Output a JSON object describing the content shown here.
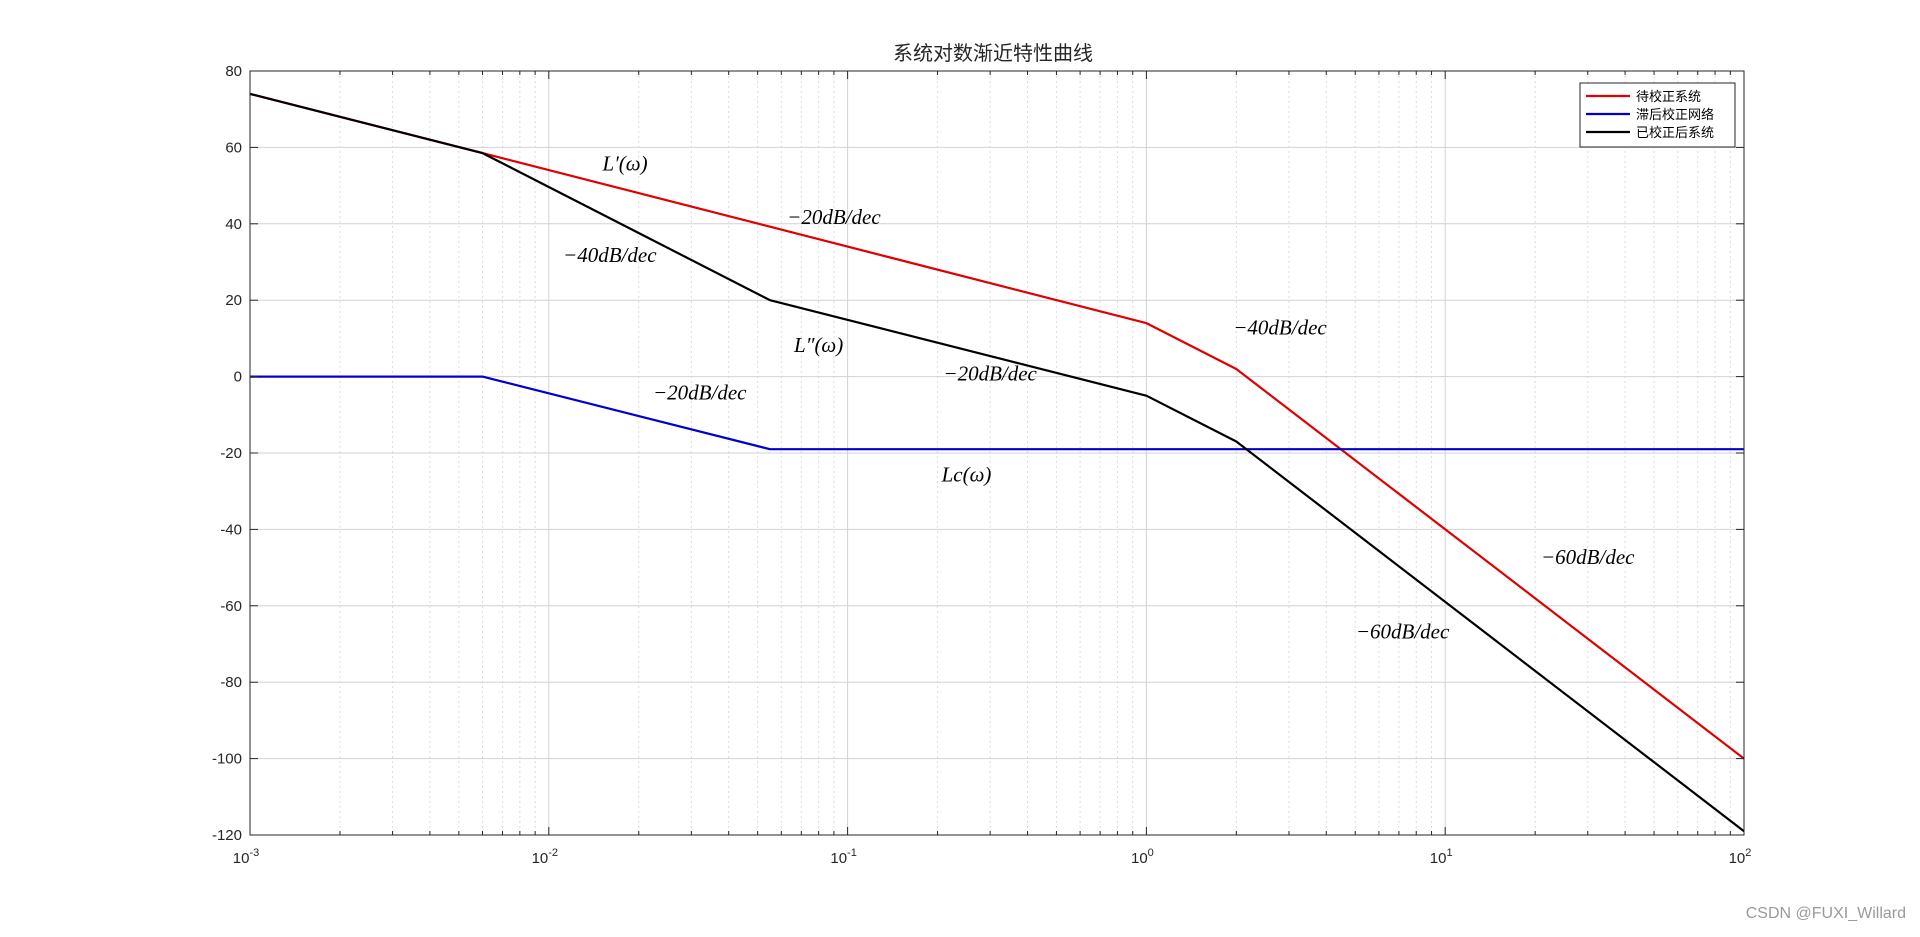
{
  "chart_data": {
    "type": "line",
    "title": "系统对数渐近特性曲线",
    "xscale": "log",
    "xlim": [
      0.001,
      100
    ],
    "ylim": [
      -120,
      80
    ],
    "grid": true,
    "x_ticks": [
      {
        "value": 0.001,
        "base": "10",
        "exp": "-3"
      },
      {
        "value": 0.01,
        "base": "10",
        "exp": "-2"
      },
      {
        "value": 0.1,
        "base": "10",
        "exp": "-1"
      },
      {
        "value": 1,
        "base": "10",
        "exp": "0"
      },
      {
        "value": 10,
        "base": "10",
        "exp": "1"
      },
      {
        "value": 100,
        "base": "10",
        "exp": "2"
      }
    ],
    "y_ticks": [
      80,
      60,
      40,
      20,
      0,
      -20,
      -40,
      -60,
      -80,
      -100,
      -120
    ],
    "series": [
      {
        "name": "待校正系统",
        "color": "#e00000",
        "x": [
          0.001,
          0.006,
          1,
          2,
          100
        ],
        "y": [
          74,
          58.5,
          14,
          2,
          -100
        ]
      },
      {
        "name": "滞后校正网络",
        "color": "#0000d0",
        "x": [
          0.001,
          0.006,
          0.055,
          100
        ],
        "y": [
          0,
          0,
          -19,
          -19
        ]
      },
      {
        "name": "已校正后系统",
        "color": "#000000",
        "x": [
          0.001,
          0.006,
          0.055,
          1,
          2,
          100
        ],
        "y": [
          74,
          58.5,
          20,
          -5,
          -17,
          -119
        ]
      }
    ],
    "legend_position": "top-right",
    "annotations": [
      {
        "text": "L′(ω)",
        "x": 0.018,
        "y": 54
      },
      {
        "text": "−20dB/dec",
        "x": 0.09,
        "y": 40
      },
      {
        "text": "−40dB/dec",
        "x": 0.016,
        "y": 30
      },
      {
        "text": "L″(ω)",
        "x": 0.08,
        "y": 6.5
      },
      {
        "text": "−40dB/dec",
        "x": 2.8,
        "y": 11
      },
      {
        "text": "−20dB/dec",
        "x": 0.3,
        "y": -1
      },
      {
        "text": "−20dB/dec",
        "x": 0.032,
        "y": -6
      },
      {
        "text": "Lc(ω)",
        "x": 0.25,
        "y": -27.5
      },
      {
        "text": "−60dB/dec",
        "x": 30,
        "y": -49
      },
      {
        "text": "−60dB/dec",
        "x": 7.2,
        "y": -68.5
      }
    ]
  },
  "watermark": "CSDN @FUXI_Willard"
}
